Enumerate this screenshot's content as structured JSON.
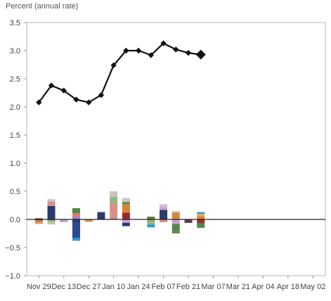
{
  "chart_data": {
    "type": "bar",
    "ylabel": "Percent (annual rate)",
    "ylim": [
      -1.0,
      3.5
    ],
    "y_ticks": [
      "3.5",
      "3.0",
      "2.5",
      "2.0",
      "1.5",
      "1.0",
      "0.5",
      "0.0",
      "−0.5",
      "−1.0"
    ],
    "y_tick_values": [
      3.5,
      3.0,
      2.5,
      2.0,
      1.5,
      1.0,
      0.5,
      0.0,
      -0.5,
      -1.0
    ],
    "x_ticks": [
      "Nov 29",
      "Dec 13",
      "Dec 27",
      "Jan 10",
      "Jan 24",
      "Feb 07",
      "Feb 21",
      "Mar 07",
      "Mar 21",
      "Apr 04",
      "Apr 18",
      "May 02"
    ],
    "x_tick_weeks": [
      0,
      2,
      4,
      6,
      8,
      10,
      12,
      14,
      16,
      18,
      20,
      22
    ],
    "x_weeks_range": [
      -0.3,
      23
    ],
    "line": {
      "color": "#111111",
      "x_weeks": [
        0,
        1,
        2,
        3,
        4,
        5,
        6,
        7,
        8,
        9,
        10,
        11,
        12,
        13
      ],
      "values": [
        2.08,
        2.38,
        2.29,
        2.13,
        2.08,
        2.21,
        2.74,
        3.0,
        3.0,
        2.92,
        3.13,
        3.02,
        2.96,
        2.93
      ],
      "last_point_emphasized": true
    },
    "stacked_bars": [
      {
        "week": 0,
        "segments": [
          {
            "value": 0.02,
            "color": "#2b3a6e"
          },
          {
            "value": -0.04,
            "color": "#c96a3a"
          },
          {
            "value": -0.04,
            "color": "#d9a05b"
          }
        ]
      },
      {
        "week": 1,
        "segments": [
          {
            "value": 0.24,
            "color": "#2b3a6e"
          },
          {
            "value": 0.08,
            "color": "#d99088"
          },
          {
            "value": 0.04,
            "color": "#c9c2c8"
          },
          {
            "value": -0.04,
            "color": "#8aa87c"
          },
          {
            "value": -0.05,
            "color": "#b9c9a8"
          }
        ]
      },
      {
        "week": 2,
        "segments": [
          {
            "value": -0.05,
            "color": "#c9a0d9"
          }
        ]
      },
      {
        "week": 3,
        "segments": [
          {
            "value": 0.05,
            "color": "#9f7fd9"
          },
          {
            "value": 0.06,
            "color": "#e07b6a"
          },
          {
            "value": 0.09,
            "color": "#4f8a45"
          },
          {
            "value": -0.05,
            "color": "#2b3a6e"
          },
          {
            "value": -0.28,
            "color": "#2b4a8e"
          },
          {
            "value": -0.05,
            "color": "#2a9ad6"
          }
        ]
      },
      {
        "week": 4,
        "segments": [
          {
            "value": -0.04,
            "color": "#d9823a"
          }
        ]
      },
      {
        "week": 5,
        "segments": [
          {
            "value": 0.13,
            "color": "#2b3a6e"
          }
        ]
      },
      {
        "week": 6,
        "segments": [
          {
            "value": 0.28,
            "color": "#d99088"
          },
          {
            "value": 0.12,
            "color": "#8fb884"
          },
          {
            "value": 0.1,
            "color": "#c9c2c8"
          }
        ]
      },
      {
        "week": 7,
        "segments": [
          {
            "value": 0.12,
            "color": "#9a2a2a"
          },
          {
            "value": 0.15,
            "color": "#d9823a"
          },
          {
            "value": 0.04,
            "color": "#4f8a45"
          },
          {
            "value": 0.07,
            "color": "#c9c2c8"
          },
          {
            "value": -0.06,
            "color": "#c9a0d9"
          },
          {
            "value": -0.06,
            "color": "#2b3a6e"
          }
        ]
      },
      {
        "week": 9,
        "segments": [
          {
            "value": 0.05,
            "color": "#4f8a45"
          },
          {
            "value": -0.02,
            "color": "#d9823a"
          },
          {
            "value": -0.07,
            "color": "#8fb884"
          },
          {
            "value": -0.05,
            "color": "#2a9ad6"
          }
        ]
      },
      {
        "week": 10,
        "segments": [
          {
            "value": 0.17,
            "color": "#2b3a6e"
          },
          {
            "value": 0.05,
            "color": "#c9a0d9"
          },
          {
            "value": 0.05,
            "color": "#c9c2c8"
          },
          {
            "value": -0.05,
            "color": "#d99088"
          }
        ]
      },
      {
        "week": 11,
        "segments": [
          {
            "value": 0.12,
            "color": "#d9823a"
          },
          {
            "value": 0.03,
            "color": "#c9c2c8"
          },
          {
            "value": -0.08,
            "color": "#c9a0d9"
          },
          {
            "value": -0.12,
            "color": "#4f8a45"
          },
          {
            "value": -0.05,
            "color": "#6a8a5a"
          }
        ]
      },
      {
        "week": 12,
        "segments": [
          {
            "value": -0.03,
            "color": "#9a2a2a"
          },
          {
            "value": -0.03,
            "color": "#2b3a6e"
          }
        ]
      },
      {
        "week": 13,
        "segments": [
          {
            "value": 0.06,
            "color": "#d9823a"
          },
          {
            "value": 0.04,
            "color": "#e0b05a"
          },
          {
            "value": 0.03,
            "color": "#2a9ad6"
          },
          {
            "value": -0.07,
            "color": "#9a2a2a"
          },
          {
            "value": -0.08,
            "color": "#4f8a45"
          }
        ]
      }
    ]
  }
}
